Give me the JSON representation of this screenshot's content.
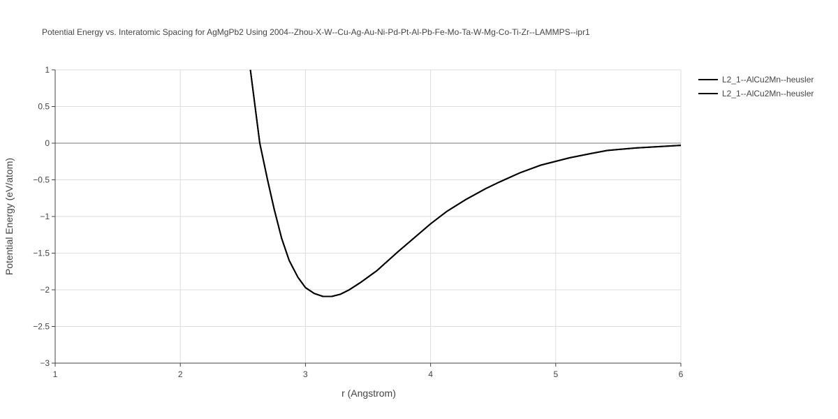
{
  "chart_data": {
    "type": "line",
    "title": "Potential Energy vs. Interatomic Spacing for AgMgPb2 Using 2004--Zhou-X-W--Cu-Ag-Au-Ni-Pd-Pt-Al-Pb-Fe-Mo-Ta-W-Mg-Co-Ti-Zr--LAMMPS--ipr1",
    "x_label": "r (Angstrom)",
    "y_label": "Potential Energy (eV/atom)",
    "xlim": [
      1,
      6
    ],
    "xticks": [
      1,
      2,
      3,
      4,
      5,
      6
    ],
    "ylim": [
      -3,
      1
    ],
    "yticks": [
      {
        "value": -3,
        "label": "−3"
      },
      {
        "value": -2.5,
        "label": "−2.5"
      },
      {
        "value": -2,
        "label": "−2"
      },
      {
        "value": -1.5,
        "label": "−1.5"
      },
      {
        "value": -1,
        "label": "−1"
      },
      {
        "value": -0.5,
        "label": "−0.5"
      },
      0,
      0.5,
      1
    ],
    "grid": true,
    "legend": "top-right",
    "x": [
      2.56,
      2.635,
      2.697,
      2.75,
      2.81,
      2.87,
      2.94,
      3.0,
      3.07,
      3.14,
      3.21,
      3.28,
      3.35,
      3.44,
      3.57,
      3.74,
      4.0,
      4.13,
      4.28,
      4.44,
      4.55,
      4.72,
      4.88,
      5.11,
      5.27,
      5.41,
      5.64,
      6.0
    ],
    "series": [
      {
        "name": "L2_1--AlCu2Mn--heusler",
        "color": "#000000",
        "values": [
          1.0,
          0.0,
          -0.5,
          -0.9,
          -1.3,
          -1.6,
          -1.83,
          -1.97,
          -2.05,
          -2.09,
          -2.09,
          -2.06,
          -2.0,
          -1.9,
          -1.74,
          -1.48,
          -1.1,
          -0.93,
          -0.77,
          -0.62,
          -0.53,
          -0.4,
          -0.3,
          -0.2,
          -0.145,
          -0.1,
          -0.065,
          -0.03
        ]
      },
      {
        "name": "L2_1--AlCu2Mn--heusler",
        "color": "#000000",
        "values": [
          1.0,
          0.0,
          -0.5,
          -0.9,
          -1.3,
          -1.6,
          -1.83,
          -1.97,
          -2.05,
          -2.09,
          -2.09,
          -2.06,
          -2.0,
          -1.9,
          -1.74,
          -1.48,
          -1.1,
          -0.93,
          -0.77,
          -0.62,
          -0.53,
          -0.4,
          -0.3,
          -0.2,
          -0.145,
          -0.1,
          -0.065,
          -0.03
        ]
      }
    ]
  }
}
